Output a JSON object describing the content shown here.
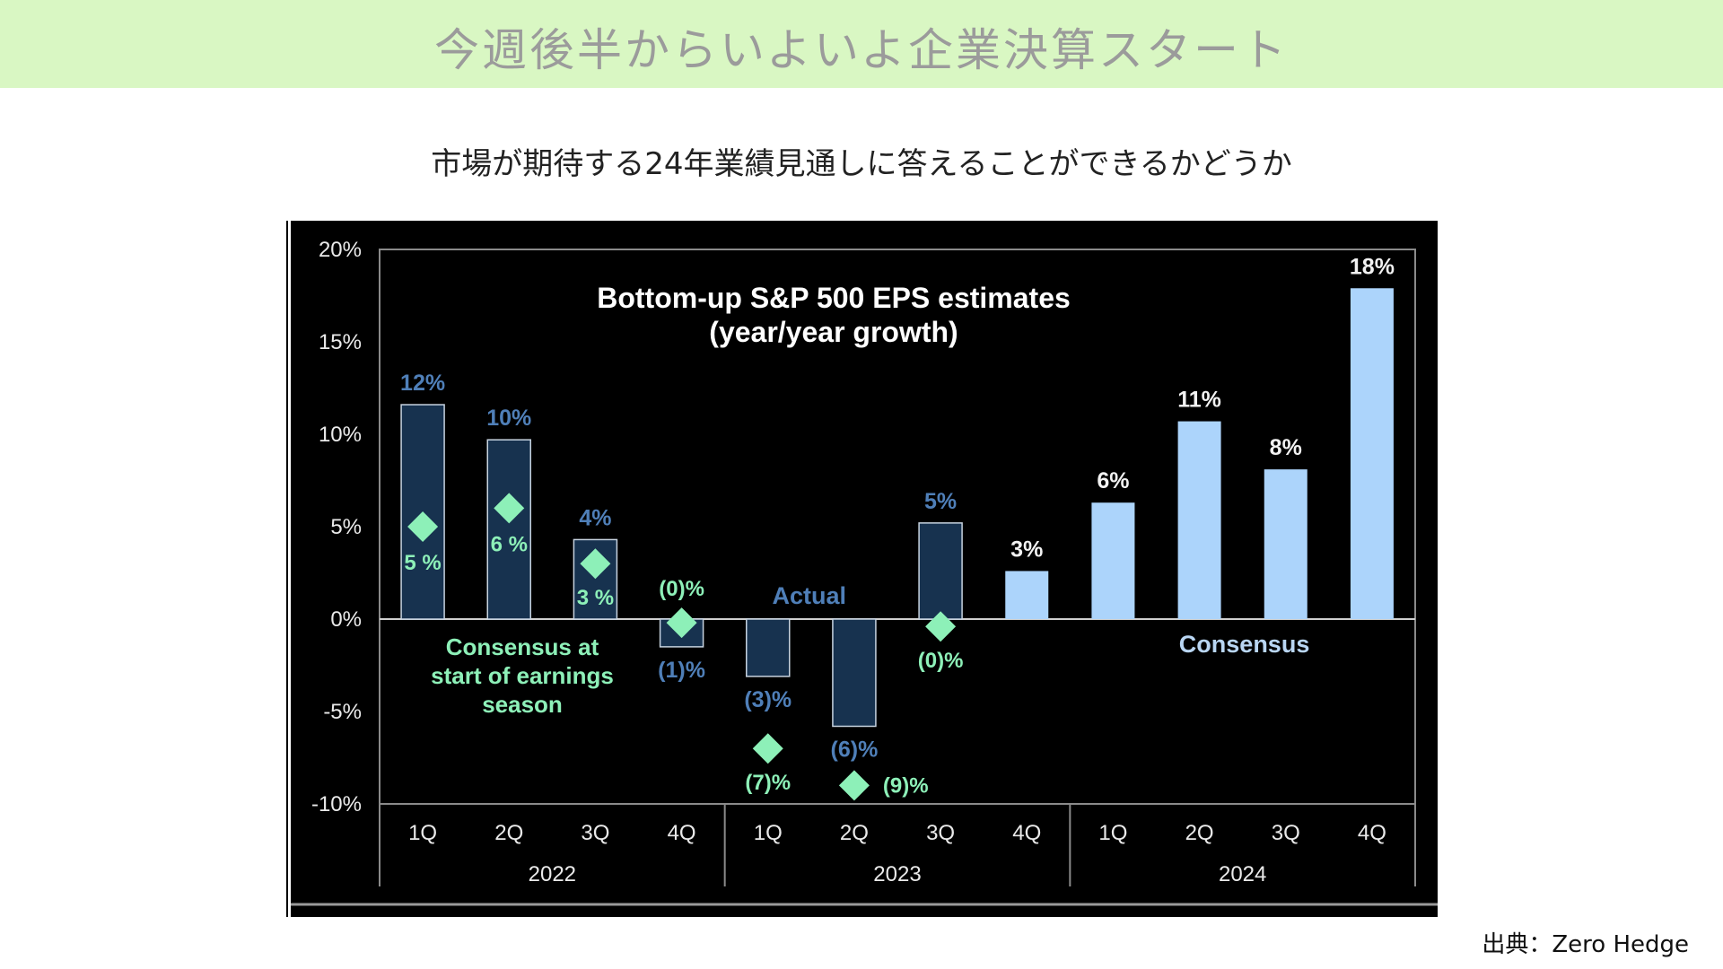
{
  "header": {
    "banner_title": "今週後半からいよいよ企業決算スタート",
    "subtitle": "市場が期待する24年業績見通しに答えることができるかどうか",
    "source": "出典：Zero Hedge"
  },
  "chart_data": {
    "type": "bar",
    "title": "Bottom-up S&P 500 EPS estimates",
    "subtitle": "(year/year growth)",
    "ylim": [
      -10,
      20
    ],
    "yticks": [
      20,
      15,
      10,
      5,
      0,
      -5,
      -10
    ],
    "ytick_labels": [
      "20%",
      "15%",
      "10%",
      "5%",
      "0%",
      "-5%",
      "-10%"
    ],
    "categories": [
      "1Q",
      "2Q",
      "3Q",
      "4Q",
      "1Q",
      "2Q",
      "3Q",
      "4Q",
      "1Q",
      "2Q",
      "3Q",
      "4Q"
    ],
    "year_groups": [
      {
        "label": "2022",
        "start": 0,
        "end": 3
      },
      {
        "label": "2023",
        "start": 4,
        "end": 7
      },
      {
        "label": "2024",
        "start": 8,
        "end": 11
      }
    ],
    "series": [
      {
        "name": "Actual",
        "values": [
          11.6,
          9.7,
          4.3,
          -1.5,
          -3.1,
          -5.8,
          5.2,
          null,
          null,
          null,
          null,
          null
        ],
        "labels": [
          "12%",
          "10%",
          "4%",
          "(1)%",
          "(3)%",
          "(6)%",
          "5%",
          "",
          "",
          "",
          "",
          ""
        ],
        "color": "#17324f",
        "label_color": "#4f7fb8"
      },
      {
        "name": "Consensus",
        "values": [
          null,
          null,
          null,
          null,
          null,
          null,
          null,
          2.6,
          6.3,
          10.7,
          8.1,
          17.9
        ],
        "labels": [
          "",
          "",
          "",
          "",
          "",
          "",
          "",
          "3%",
          "6%",
          "11%",
          "8%",
          "18%"
        ],
        "color": "#acd4fb",
        "label_color": "#f2f2f2"
      },
      {
        "name": "Consensus at start of earnings season",
        "type": "marker",
        "values": [
          5,
          6,
          3,
          -0.2,
          -7,
          -9,
          -0.4,
          null,
          null,
          null,
          null,
          null
        ],
        "labels": [
          "5 %",
          "6 %",
          "3 %",
          "(0)%",
          "(7)%",
          "(9)%",
          "(0)%",
          "",
          "",
          "",
          "",
          ""
        ],
        "color": "#8df0b8"
      }
    ],
    "annotations": {
      "actual": "Actual",
      "consensus": "Consensus",
      "consensus_start": [
        "Consensus at",
        "start of earnings",
        "season"
      ]
    },
    "colors": {
      "background": "#000000",
      "axis": "#8a8a8a",
      "text": "#eaeaea",
      "actual_bar": "#17324f",
      "consensus_bar": "#acd4fb",
      "marker": "#8df0b8",
      "actual_label": "#4f7fb8"
    }
  }
}
